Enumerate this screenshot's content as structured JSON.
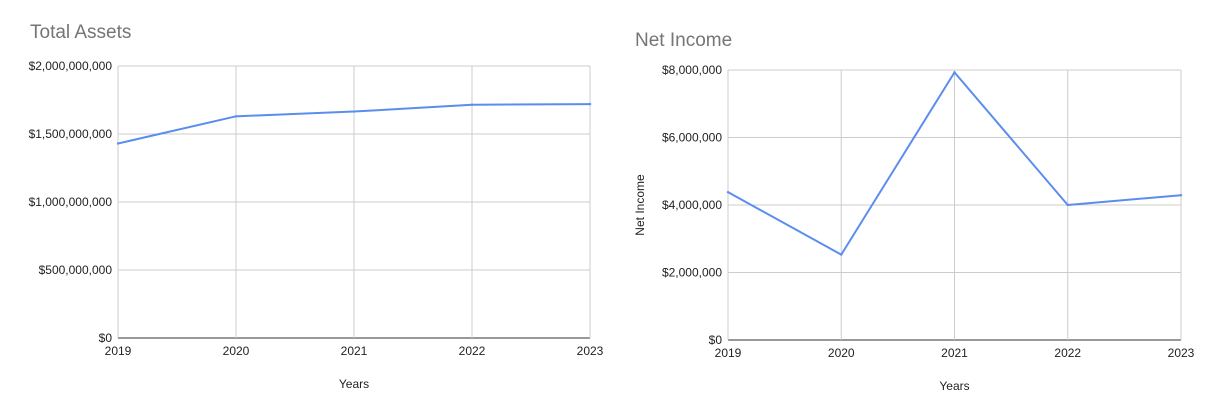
{
  "chart_data": [
    {
      "type": "line",
      "title": "Total Assets",
      "xlabel": "Years",
      "ylabel": "",
      "categories": [
        "2019",
        "2020",
        "2021",
        "2022",
        "2023"
      ],
      "series": [
        {
          "values": [
            1430000000,
            1630000000,
            1665000000,
            1715000000,
            1720000000
          ]
        }
      ],
      "yticks": [
        "$0",
        "$500,000,000",
        "$1,000,000,000",
        "$1,500,000,000",
        "$2,000,000,000"
      ],
      "ylim": [
        0,
        2000000000
      ],
      "grid": true,
      "line_color": "#5b8def"
    },
    {
      "type": "line",
      "title": "Net Income",
      "xlabel": "Years",
      "ylabel": "Net Income",
      "categories": [
        "2019",
        "2020",
        "2021",
        "2022",
        "2023"
      ],
      "series": [
        {
          "values": [
            4380000,
            2530000,
            7930000,
            4000000,
            4290000
          ]
        }
      ],
      "yticks": [
        "$0",
        "$2,000,000",
        "$4,000,000",
        "$6,000,000",
        "$8,000,000"
      ],
      "ylim": [
        0,
        8000000
      ],
      "grid": true,
      "line_color": "#5b8def"
    }
  ]
}
